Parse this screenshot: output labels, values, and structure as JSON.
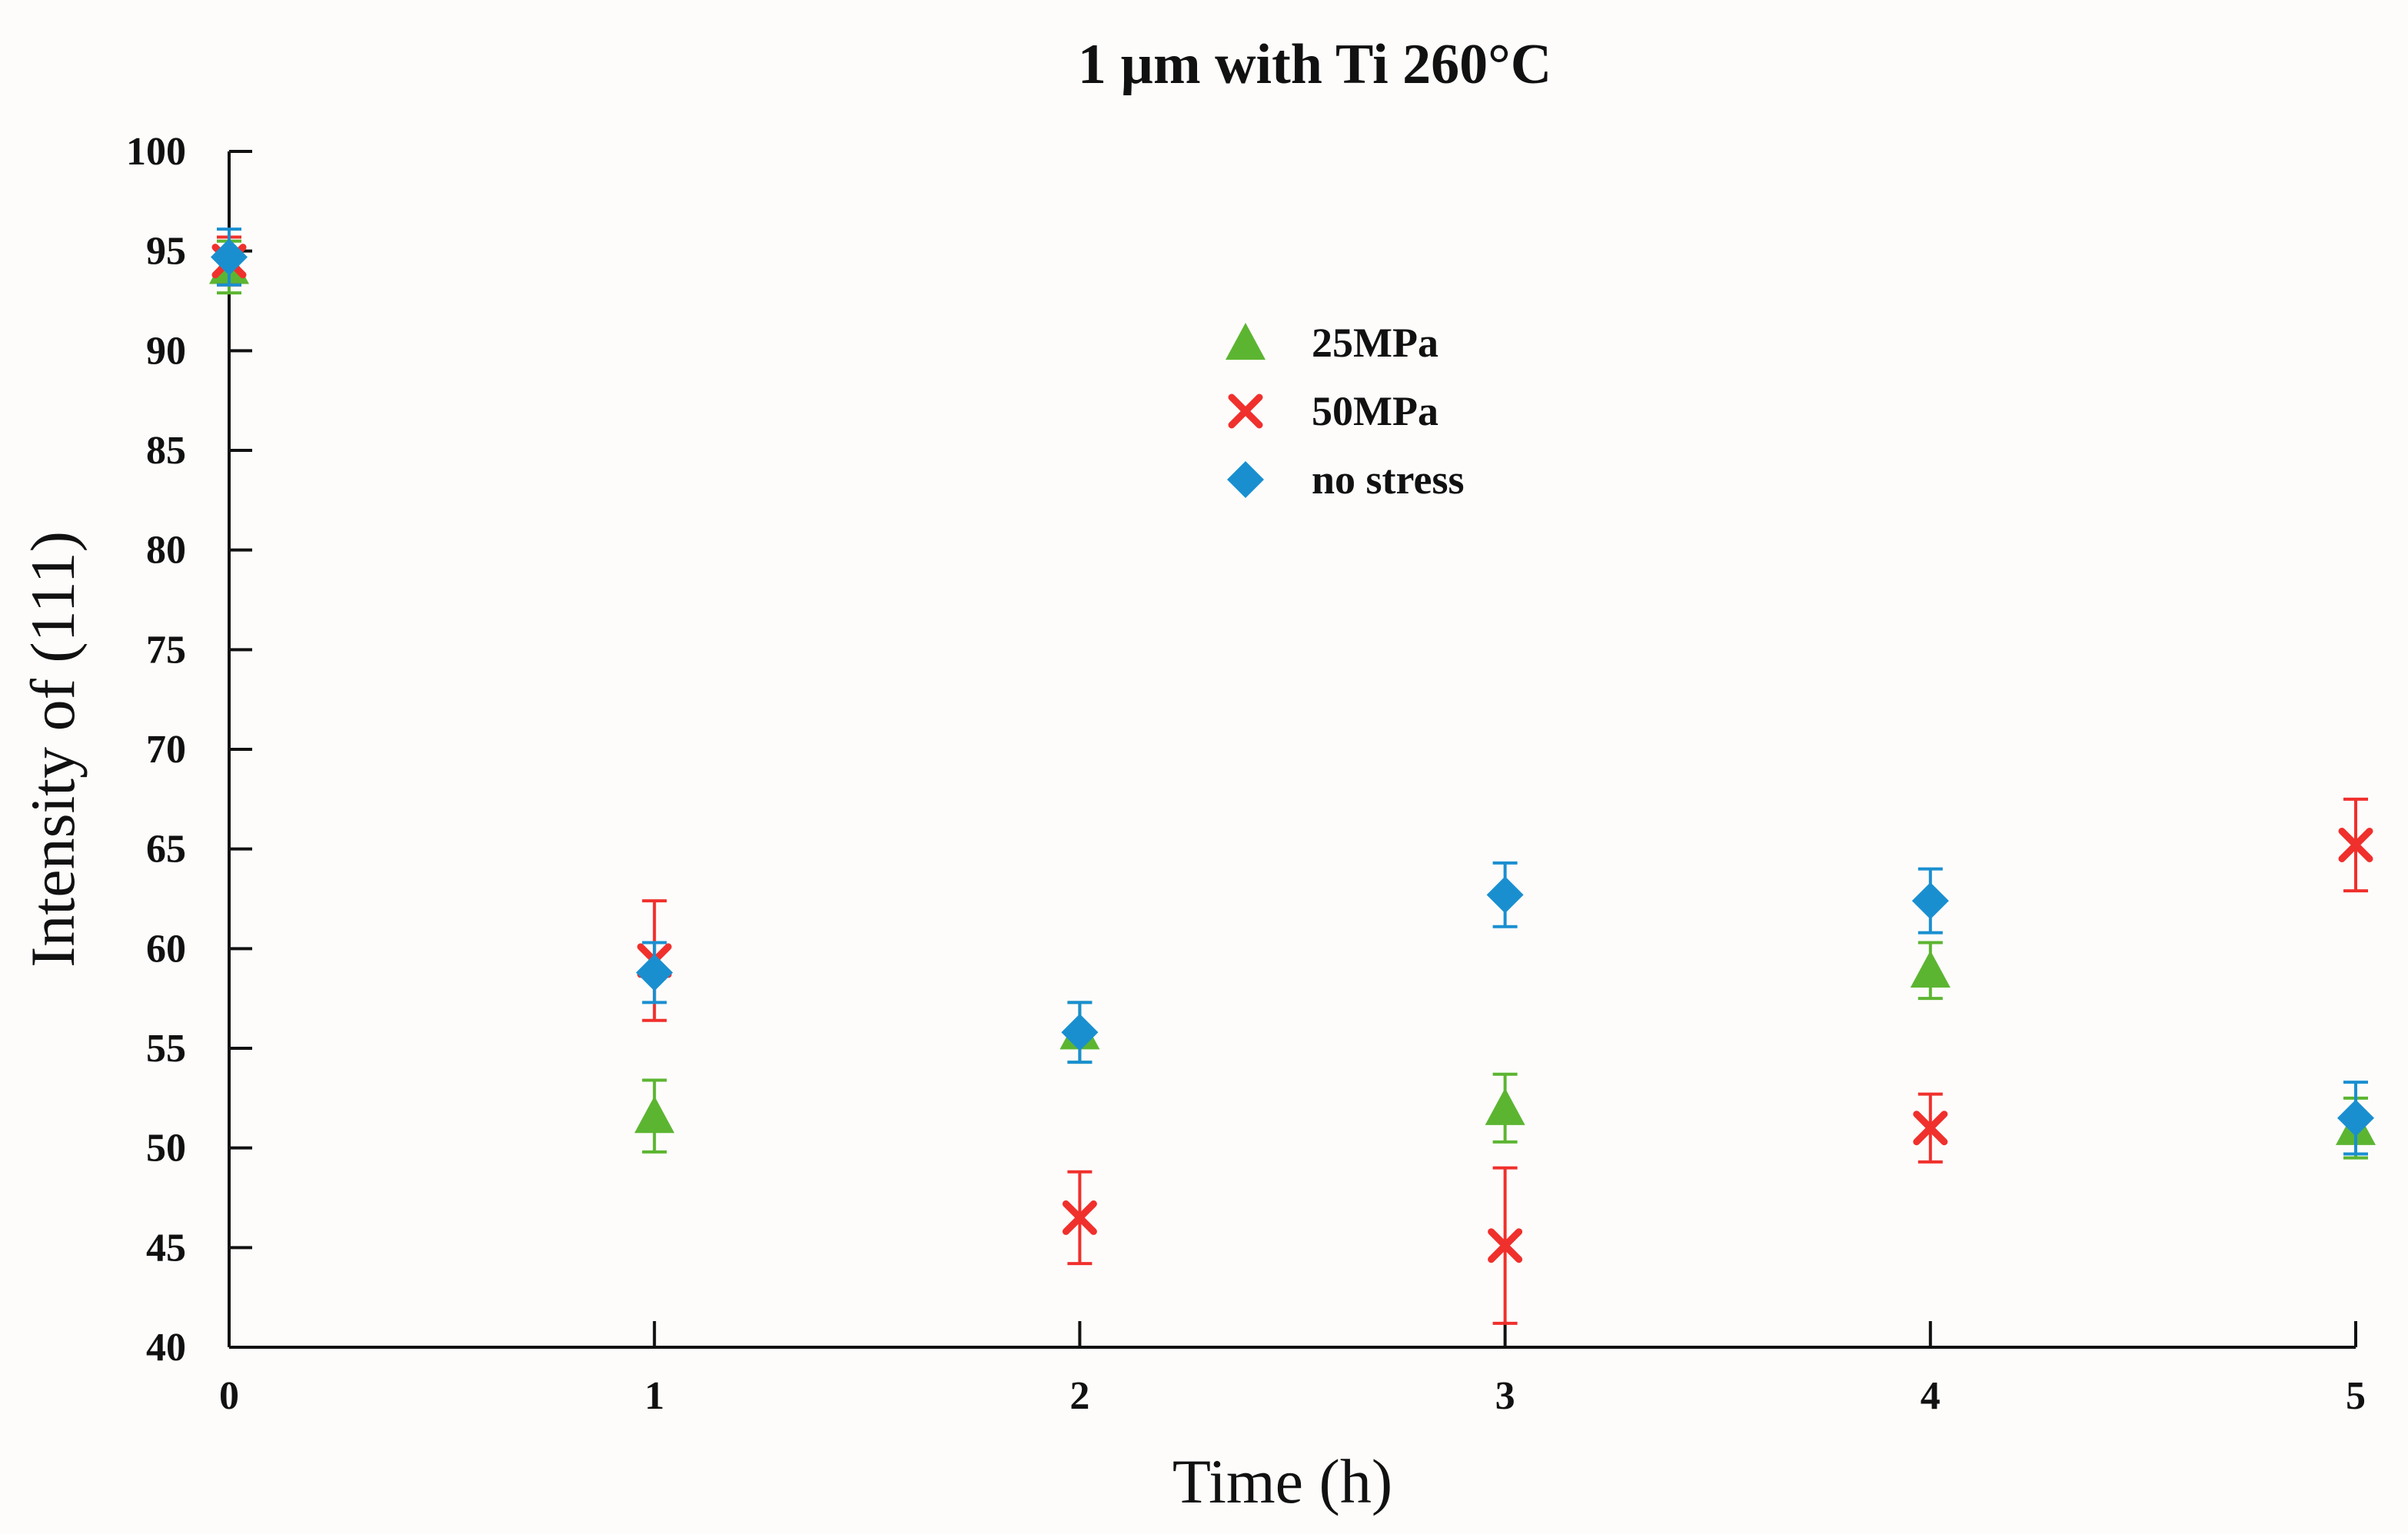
{
  "chart_data": {
    "type": "scatter",
    "title": "1 µm with Ti 260°C",
    "xlabel": "Time (h)",
    "ylabel": "Intensity of (111)",
    "xlim": [
      0,
      5
    ],
    "ylim": [
      40,
      100
    ],
    "xticks": [
      0,
      1,
      2,
      3,
      4,
      5
    ],
    "yticks": [
      40,
      45,
      50,
      55,
      60,
      65,
      70,
      75,
      80,
      85,
      90,
      95,
      100
    ],
    "legend_position": "upper-center",
    "grid": false,
    "series": [
      {
        "name": "25MPa",
        "marker": "triangle",
        "color": "#5cb531",
        "x": [
          0,
          1,
          2,
          3,
          4,
          5
        ],
        "y": [
          94.2,
          51.6,
          55.8,
          52.0,
          58.9,
          51.0
        ],
        "err": [
          1.3,
          1.8,
          1.5,
          1.7,
          1.4,
          1.5
        ]
      },
      {
        "name": "50MPa",
        "marker": "x",
        "color": "#f0302c",
        "x": [
          0,
          1,
          2,
          3,
          4,
          5
        ],
        "y": [
          94.5,
          59.4,
          46.5,
          45.1,
          51.0,
          65.2
        ],
        "err": [
          1.2,
          3.0,
          2.3,
          3.9,
          1.7,
          2.3
        ]
      },
      {
        "name": "no stress",
        "marker": "diamond",
        "color": "#1a8fd0",
        "x": [
          0,
          1,
          2,
          3,
          4,
          5
        ],
        "y": [
          94.7,
          58.8,
          55.8,
          62.7,
          62.4,
          51.5
        ],
        "err": [
          1.4,
          1.5,
          1.5,
          1.6,
          1.6,
          1.8
        ]
      }
    ]
  }
}
